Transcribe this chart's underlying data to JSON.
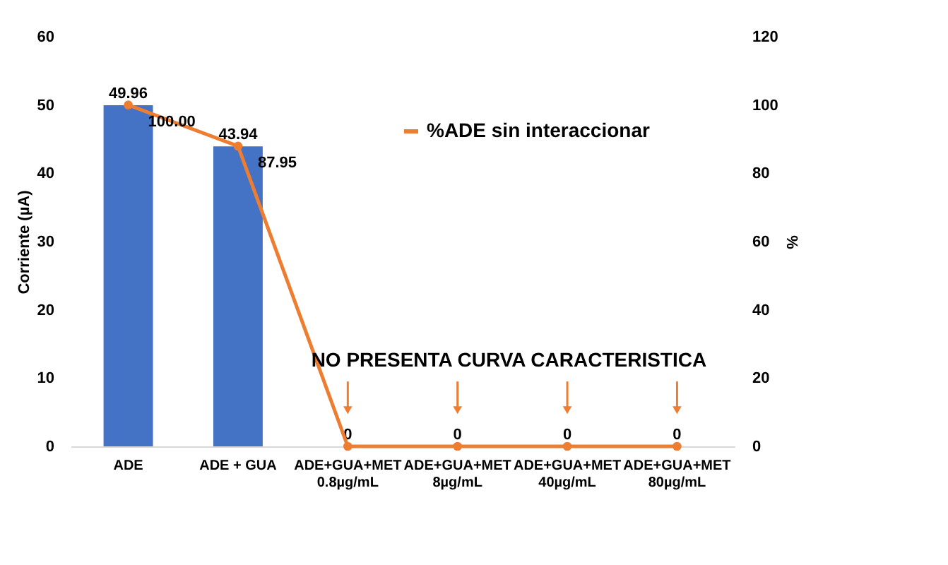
{
  "chart_data": {
    "type": "bar",
    "categories": [
      "ADE",
      "ADE + GUA",
      "ADE+GUA+MET\n0.8µg/mL",
      "ADE+GUA+MET\n8µg/mL",
      "ADE+GUA+MET\n40µg/mL",
      "ADE+GUA+MET\n80µg/mL"
    ],
    "series": [
      {
        "color": "#4472c4",
        "values": [
          49.96,
          43.94,
          0,
          0,
          0,
          0
        ],
        "value_labels": [
          "49.96",
          "43.94",
          "0",
          "0",
          "0",
          "0"
        ]
      },
      {
        "type": "line",
        "name": "%ADE sin interaccionar",
        "axis": "y2",
        "color": "#ed7d31",
        "values": [
          100.0,
          87.95,
          0,
          0,
          0,
          0
        ],
        "value_labels": [
          "100.00",
          "87.95",
          null,
          null,
          null,
          null
        ],
        "marker": "circle"
      }
    ],
    "ylabel": "Corriente (µA)",
    "y2label": "%",
    "ylim": [
      0,
      60
    ],
    "yticks": [
      0,
      10,
      20,
      30,
      40,
      50,
      60
    ],
    "y2lim": [
      0,
      120
    ],
    "y2ticks": [
      0,
      20,
      40,
      60,
      80,
      100,
      120
    ],
    "annotations": [
      "NO PRESENTA CURVA CARACTERISTICA"
    ],
    "grid": false,
    "legend": "top right"
  }
}
